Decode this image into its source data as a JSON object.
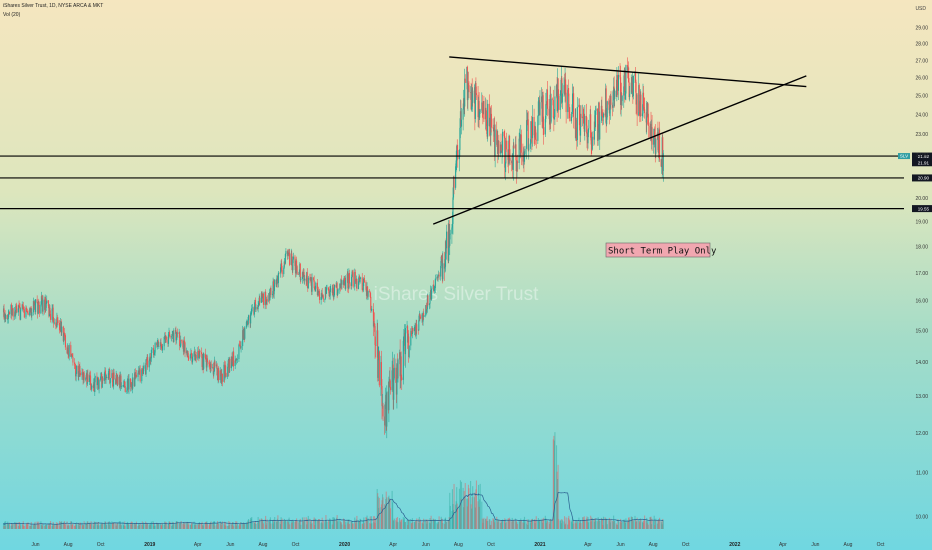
{
  "header": {
    "symbol_line": "iShares Silver Trust, 1D, NYSE ARCA & MKT",
    "indicator": "Vol (20)",
    "currency": "USD"
  },
  "watermark": "iShares Silver Trust",
  "annotation": {
    "text": "Short Term Play Only",
    "color": "#f1a7b0"
  },
  "colors": {
    "up": "#26a69a",
    "down": "#ef5350",
    "vol_ma": "#2a5f8f",
    "trendline": "#000000"
  },
  "chart_data": {
    "type": "candlestick",
    "title": "iShares Silver Trust, 1D, NYSE ARCA & MKT",
    "x_axis_labels": [
      "Jun",
      "Aug",
      "Oct",
      "2019",
      "Apr",
      "Jun",
      "Aug",
      "Oct",
      "2020",
      "Apr",
      "Jun",
      "Aug",
      "Oct",
      "2021",
      "Apr",
      "Jun",
      "Aug",
      "Oct",
      "2022",
      "Apr",
      "Jun",
      "Aug",
      "Oct"
    ],
    "y_axis": {
      "ticks": [
        10,
        11,
        12,
        13,
        14,
        15,
        16,
        17,
        18,
        19,
        20,
        22,
        23,
        24,
        25,
        26,
        27,
        28,
        29
      ],
      "tick_labels": [
        "10.00",
        "11.00",
        "12.00",
        "13.00",
        "14.00",
        "15.00",
        "16.00",
        "17.00",
        "18.00",
        "19.00",
        "20.00",
        "22.00",
        "23.00",
        "24.00",
        "25.00",
        "26.00",
        "27.00",
        "28.00",
        "29.00"
      ],
      "top_label": "31.00"
    },
    "horizontal_levels": [
      {
        "value": 21.92,
        "label": "21.92"
      },
      {
        "value": 20.9,
        "label": "20.90"
      },
      {
        "value": 19.55,
        "label": "19.55"
      }
    ],
    "price_labels": {
      "last": "21.91",
      "tag": "SLV"
    },
    "trendlines": [
      {
        "name": "upper-resistance",
        "start": [
          "2020-07",
          27.2
        ],
        "end": [
          "2022-05",
          25.5
        ]
      },
      {
        "name": "rising-support",
        "start": [
          "2020-06",
          18.9
        ],
        "end": [
          "2022-05",
          26.1
        ]
      }
    ],
    "anchors": [
      {
        "date": "2018-05",
        "close": 15.6
      },
      {
        "date": "2018-06",
        "close": 15.9
      },
      {
        "date": "2018-07",
        "close": 15.2
      },
      {
        "date": "2018-08",
        "close": 13.8
      },
      {
        "date": "2018-09",
        "close": 13.3
      },
      {
        "date": "2018-10",
        "close": 13.6
      },
      {
        "date": "2018-11",
        "close": 13.3
      },
      {
        "date": "2018-12",
        "close": 13.6
      },
      {
        "date": "2019-01",
        "close": 14.5
      },
      {
        "date": "2019-02",
        "close": 14.9
      },
      {
        "date": "2019-03",
        "close": 14.3
      },
      {
        "date": "2019-04",
        "close": 14.0
      },
      {
        "date": "2019-05",
        "close": 13.6
      },
      {
        "date": "2019-06",
        "close": 14.3
      },
      {
        "date": "2019-07",
        "close": 15.8
      },
      {
        "date": "2019-08",
        "close": 16.2
      },
      {
        "date": "2019-09",
        "close": 17.6
      },
      {
        "date": "2019-10",
        "close": 16.9
      },
      {
        "date": "2019-11",
        "close": 16.3
      },
      {
        "date": "2019-12",
        "close": 16.4
      },
      {
        "date": "2020-01",
        "close": 16.8
      },
      {
        "date": "2020-02",
        "close": 16.4
      },
      {
        "date": "2020-03",
        "close": 12.6
      },
      {
        "date": "2020-04",
        "close": 14.1
      },
      {
        "date": "2020-05",
        "close": 15.1
      },
      {
        "date": "2020-06",
        "close": 16.4
      },
      {
        "date": "2020-07",
        "close": 18.2
      },
      {
        "date": "2020-08",
        "close": 25.6
      },
      {
        "date": "2020-09",
        "close": 24.2
      },
      {
        "date": "2020-10",
        "close": 22.3
      },
      {
        "date": "2020-11",
        "close": 21.8
      },
      {
        "date": "2020-12",
        "close": 23.2
      },
      {
        "date": "2021-01",
        "close": 24.3
      },
      {
        "date": "2021-02",
        "close": 25.2
      },
      {
        "date": "2021-03",
        "close": 23.5
      },
      {
        "date": "2021-04",
        "close": 23.2
      },
      {
        "date": "2021-05",
        "close": 25.1
      },
      {
        "date": "2021-06",
        "close": 25.9
      },
      {
        "date": "2021-07",
        "close": 24.3
      },
      {
        "date": "2021-08",
        "close": 22.2
      }
    ]
  }
}
